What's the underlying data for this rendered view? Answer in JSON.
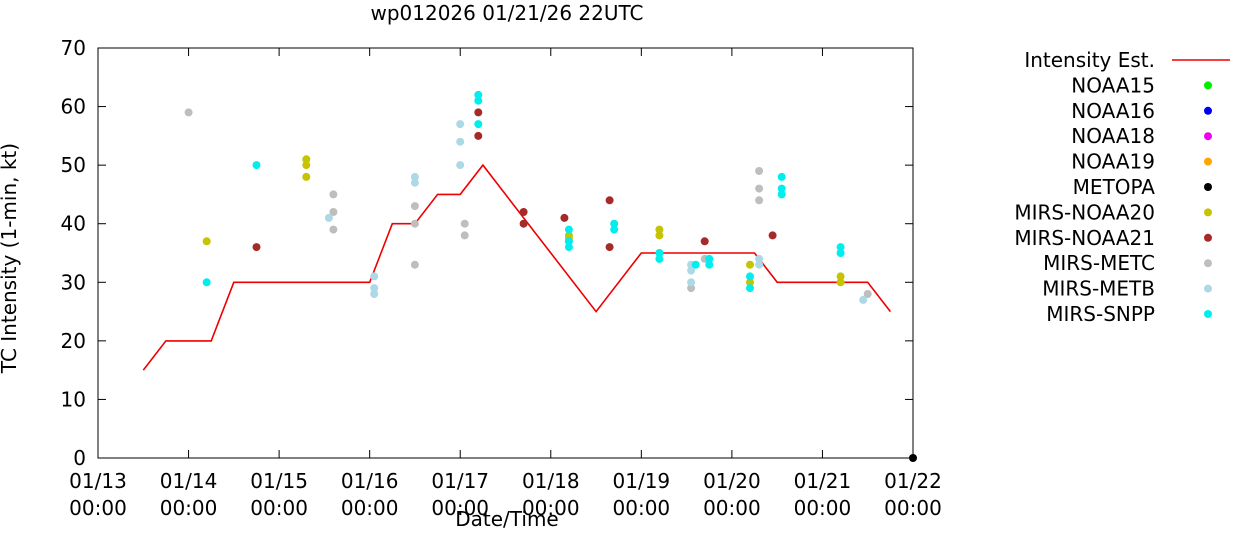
{
  "chart_data": {
    "type": "scatter",
    "title": "wp012026 01/21/26 22UTC",
    "xlabel": "Date/Time",
    "ylabel": "TC Intensity (1-min, kt)",
    "ylim": [
      0,
      70
    ],
    "xlim": [
      0,
      9
    ],
    "x_unit": "days since 01/13 00:00",
    "y_ticks": [
      "0",
      "10",
      "20",
      "30",
      "40",
      "50",
      "60",
      "70"
    ],
    "x_ticks": [
      {
        "date": "01/13",
        "time": "00:00"
      },
      {
        "date": "01/14",
        "time": "00:00"
      },
      {
        "date": "01/15",
        "time": "00:00"
      },
      {
        "date": "01/16",
        "time": "00:00"
      },
      {
        "date": "01/17",
        "time": "00:00"
      },
      {
        "date": "01/18",
        "time": "00:00"
      },
      {
        "date": "01/19",
        "time": "00:00"
      },
      {
        "date": "01/20",
        "time": "00:00"
      },
      {
        "date": "01/21",
        "time": "00:00"
      },
      {
        "date": "01/22",
        "time": "00:00"
      }
    ],
    "intensity_line": {
      "name": "Intensity Est.",
      "color": "#ee0000",
      "x": [
        0.5,
        0.75,
        1.25,
        1.5,
        2.0,
        2.5,
        3.0,
        3.25,
        3.5,
        3.75,
        4.0,
        4.25,
        4.5,
        5.0,
        5.5,
        6.0,
        6.5,
        7.0,
        7.25,
        7.5,
        8.0,
        8.5,
        8.75
      ],
      "y": [
        15,
        20,
        20,
        30,
        30,
        30,
        30,
        40,
        40,
        45,
        45,
        50,
        45,
        35,
        25,
        35,
        35,
        35,
        35,
        30,
        30,
        30,
        25
      ]
    },
    "series": [
      {
        "name": "NOAA15",
        "color": "#00ee00",
        "points": []
      },
      {
        "name": "NOAA16",
        "color": "#0000ee",
        "points": []
      },
      {
        "name": "NOAA18",
        "color": "#ee00ee",
        "points": []
      },
      {
        "name": "NOAA19",
        "color": "#ffa500",
        "points": []
      },
      {
        "name": "METOPA",
        "color": "#000000",
        "points": [
          [
            9.0,
            0
          ]
        ]
      },
      {
        "name": "MIRS-NOAA20",
        "color": "#c6c300",
        "points": [
          [
            1.2,
            37
          ],
          [
            2.3,
            51
          ],
          [
            2.3,
            50
          ],
          [
            2.3,
            48
          ],
          [
            5.2,
            38
          ],
          [
            5.2,
            37.5
          ],
          [
            6.2,
            39
          ],
          [
            6.2,
            38
          ],
          [
            7.2,
            33
          ],
          [
            7.2,
            30
          ],
          [
            8.2,
            31
          ],
          [
            8.2,
            30
          ]
        ]
      },
      {
        "name": "MIRS-NOAA21",
        "color": "#a52a2a",
        "points": [
          [
            1.75,
            36
          ],
          [
            4.2,
            59
          ],
          [
            4.2,
            55
          ],
          [
            4.7,
            42
          ],
          [
            4.7,
            40
          ],
          [
            5.15,
            41
          ],
          [
            5.65,
            44
          ],
          [
            5.65,
            36
          ],
          [
            6.7,
            37
          ],
          [
            7.45,
            38
          ]
        ]
      },
      {
        "name": "MIRS-METC",
        "color": "#bebebe",
        "points": [
          [
            1.0,
            59
          ],
          [
            2.6,
            45
          ],
          [
            2.6,
            42
          ],
          [
            2.6,
            39
          ],
          [
            3.5,
            43
          ],
          [
            3.5,
            40
          ],
          [
            3.5,
            33
          ],
          [
            4.05,
            40
          ],
          [
            4.05,
            38
          ],
          [
            5.2,
            37
          ],
          [
            6.55,
            29
          ],
          [
            6.7,
            34
          ],
          [
            7.3,
            49
          ],
          [
            7.3,
            46
          ],
          [
            7.3,
            44
          ],
          [
            8.5,
            28
          ]
        ]
      },
      {
        "name": "MIRS-METB",
        "color": "#add8e6",
        "points": [
          [
            2.55,
            41
          ],
          [
            3.05,
            31
          ],
          [
            3.05,
            29
          ],
          [
            3.05,
            28
          ],
          [
            3.5,
            48
          ],
          [
            3.5,
            47
          ],
          [
            4.0,
            57
          ],
          [
            4.0,
            54
          ],
          [
            4.0,
            50
          ],
          [
            6.55,
            33
          ],
          [
            6.55,
            32
          ],
          [
            6.55,
            30
          ],
          [
            7.3,
            34
          ],
          [
            7.3,
            33
          ],
          [
            8.45,
            27
          ]
        ]
      },
      {
        "name": "MIRS-SNPP",
        "color": "#00eeee",
        "points": [
          [
            1.2,
            30
          ],
          [
            1.75,
            50
          ],
          [
            4.2,
            62
          ],
          [
            4.2,
            61
          ],
          [
            4.2,
            57
          ],
          [
            5.2,
            39
          ],
          [
            5.2,
            37
          ],
          [
            5.2,
            36
          ],
          [
            5.7,
            40
          ],
          [
            5.7,
            39
          ],
          [
            6.2,
            35
          ],
          [
            6.2,
            34
          ],
          [
            6.6,
            33
          ],
          [
            6.75,
            34
          ],
          [
            6.75,
            33
          ],
          [
            7.2,
            31
          ],
          [
            7.2,
            29
          ],
          [
            7.55,
            48
          ],
          [
            7.55,
            46
          ],
          [
            7.55,
            45
          ],
          [
            8.2,
            36
          ],
          [
            8.2,
            35
          ]
        ]
      }
    ]
  }
}
